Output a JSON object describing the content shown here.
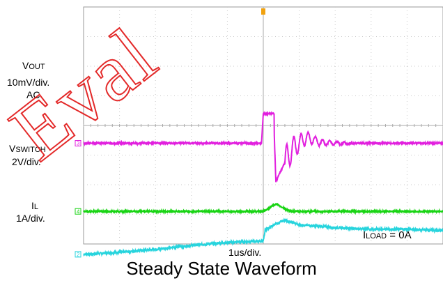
{
  "chart_data": {
    "type": "line",
    "title": "Steady State Waveform",
    "time_per_div": "1us/div.",
    "divisions": {
      "x": 10,
      "y": 8
    },
    "annotation": {
      "main": "I",
      "sub": "LOAD",
      "suffix": " = 0A"
    },
    "series": [
      {
        "name": {
          "main": "V",
          "sub": "OUT"
        },
        "scale": "10mV/div.",
        "coupling": "AC",
        "marker": "2",
        "color": "#27d4dd",
        "x": [
          -5,
          -4,
          -3,
          -2,
          -1,
          0,
          0.05,
          0.3,
          0.6,
          1,
          1.5,
          2,
          3,
          4,
          5
        ],
        "y": [
          -0.35,
          -0.28,
          -0.18,
          -0.05,
          0.05,
          0.1,
          0.45,
          0.65,
          0.8,
          0.65,
          0.6,
          0.55,
          0.5,
          0.5,
          0.45
        ]
      },
      {
        "name": {
          "main": "V",
          "sub": "SWITCH"
        },
        "scale": "2V/div.",
        "marker": "3",
        "color": "#e11fde",
        "x": [
          -5,
          -0.05,
          0,
          0.3,
          0.3,
          0.35,
          0.5,
          0.8,
          1.2,
          1.6,
          2,
          2.5,
          3,
          5
        ],
        "y": [
          3.4,
          3.4,
          4.4,
          4.4,
          3.9,
          2.1,
          2.5,
          3.2,
          3.6,
          3.42,
          3.4,
          3.4,
          3.4,
          3.4
        ]
      },
      {
        "name": {
          "main": "I",
          "sub": "L"
        },
        "scale": "1A/div.",
        "marker": "4",
        "color": "#19d414",
        "x": [
          -5,
          -1,
          0,
          0.35,
          0.75,
          1.5,
          5
        ],
        "y": [
          1.1,
          1.1,
          1.1,
          1.35,
          1.1,
          1.1,
          1.1
        ]
      }
    ]
  }
}
